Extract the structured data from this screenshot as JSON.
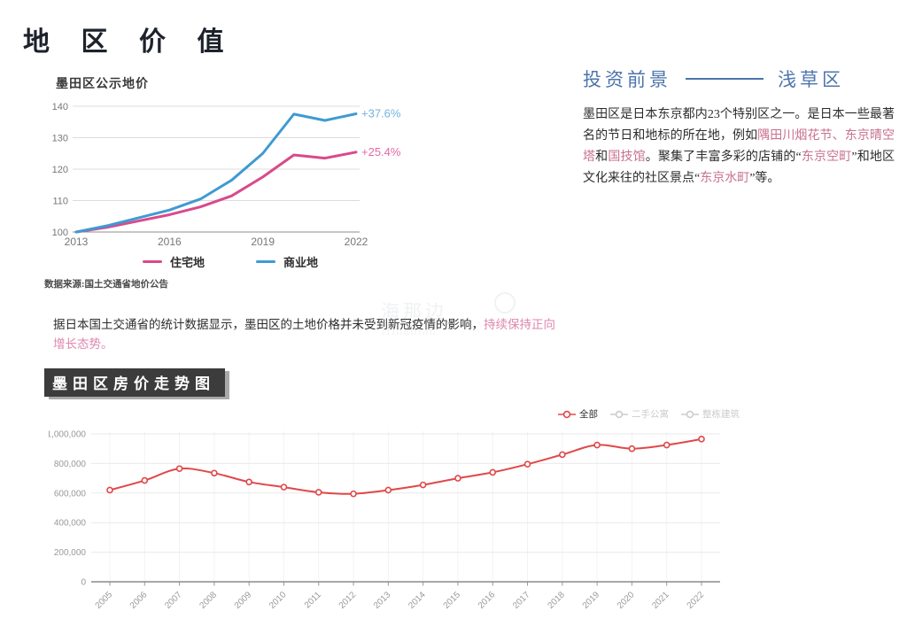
{
  "page": {
    "title": "地 区 价 值"
  },
  "colors": {
    "heading_blue": "#4d74ac",
    "landmark_pink": "#c87090",
    "growth_pink": "#df86ae",
    "residential_pink": "#d84a8c",
    "commercial_blue": "#3f9ad2",
    "annotation_pink": "#e668a6",
    "annotation_blue": "#74b2dd",
    "trend_red": "#e04848",
    "inactive_gray": "#cccccc",
    "title_box_bg": "#3c3c3c"
  },
  "land_price": {
    "title": "墨田区公示地价",
    "source": "数据来源:国土交通省地价公告"
  },
  "chart_data": [
    {
      "type": "line",
      "title": "墨田区公示地价",
      "x": [
        2013,
        2014,
        2015,
        2016,
        2017,
        2018,
        2019,
        2020,
        2021,
        2022
      ],
      "xticks": [
        2013,
        2016,
        2019,
        2022
      ],
      "ylim": [
        100,
        140
      ],
      "yticks": [
        100,
        110,
        120,
        130,
        140
      ],
      "grid": "horizontal",
      "legend_position": "bottom",
      "series": [
        {
          "name": "住宅地",
          "color": "#d84a8c",
          "annotation": "+25.4%",
          "annotation_color": "#e668a6",
          "values": [
            100,
            101.5,
            103.5,
            105.5,
            108,
            111.5,
            117.5,
            124.5,
            123.5,
            125.4
          ]
        },
        {
          "name": "商业地",
          "color": "#3f9ad2",
          "annotation": "+37.6%",
          "annotation_color": "#74b2dd",
          "values": [
            100,
            102,
            104.5,
            107,
            110.5,
            116.5,
            125,
            137.5,
            135.5,
            137.6
          ]
        }
      ]
    },
    {
      "type": "line",
      "title": "墨田区房价走势图",
      "x": [
        2005,
        2006,
        2007,
        2008,
        2009,
        2010,
        2011,
        2012,
        2013,
        2014,
        2015,
        2016,
        2017,
        2018,
        2019,
        2020,
        2021,
        2022
      ],
      "ylim": [
        0,
        1000000
      ],
      "yticks": [
        0,
        200000,
        400000,
        600000,
        800000,
        1000000
      ],
      "grid": "both",
      "legend_position": "top-right",
      "legend": [
        {
          "label": "全部",
          "active": true
        },
        {
          "label": "二手公寓",
          "active": false
        },
        {
          "label": "整栋建筑",
          "active": false
        }
      ],
      "series": [
        {
          "name": "全部",
          "color": "#e04848",
          "values": [
            620000,
            685000,
            765000,
            735000,
            675000,
            640000,
            605000,
            595000,
            620000,
            655000,
            700000,
            740000,
            795000,
            860000,
            925000,
            900000,
            925000,
            965000
          ]
        }
      ]
    }
  ],
  "growth_note": {
    "segments": [
      {
        "t": "据日本国土交通省的统计数据显示，墨田区的土地价格并未受到新冠疫情的影响，",
        "c": "d"
      },
      {
        "t": "持续保持正向增长态势。",
        "c": "growth"
      }
    ]
  },
  "trend": {
    "title": "墨田区房价走势图"
  },
  "right": {
    "heading_left": "投资前景",
    "heading_right": "浅草区",
    "paragraph": {
      "segments": [
        {
          "t": "墨田区是日本东京都内23个特别区之一。是日本一些最著名的节日和地标的所在地，例如",
          "c": "d"
        },
        {
          "t": "隅田川烟花节、东京晴空塔",
          "c": "pink"
        },
        {
          "t": "和",
          "c": "d"
        },
        {
          "t": "国技馆",
          "c": "pink"
        },
        {
          "t": "。聚集了丰富多彩的店铺的“",
          "c": "d"
        },
        {
          "t": "东京空町",
          "c": "pink"
        },
        {
          "t": "”和地区文化来往的社区景点“",
          "c": "d"
        },
        {
          "t": "东京水町",
          "c": "pink"
        },
        {
          "t": "”等。",
          "c": "d"
        }
      ]
    }
  },
  "watermark": {
    "line1": "海那边",
    "line2": "Hinabian"
  }
}
